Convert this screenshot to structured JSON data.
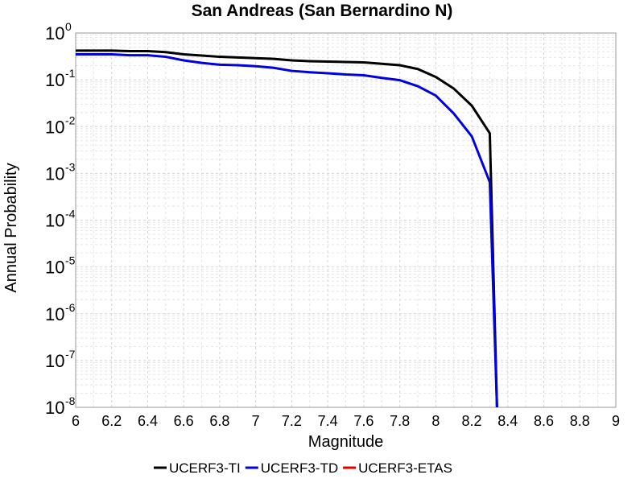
{
  "chart_data": {
    "type": "line",
    "title": "San Andreas (San Bernardino N)",
    "xlabel": "Magnitude",
    "ylabel": "Annual Probability",
    "xlim": [
      6,
      9
    ],
    "ylim": [
      1e-08,
      1
    ],
    "yscale": "log",
    "grid": true,
    "legend_position": "bottom",
    "xticks": [
      "6",
      "6.2",
      "6.4",
      "6.6",
      "6.8",
      "7",
      "7.2",
      "7.4",
      "7.6",
      "7.8",
      "8",
      "8.2",
      "8.4",
      "8.6",
      "8.8",
      "9"
    ],
    "yticks": [
      {
        "base": "10",
        "exp": "0",
        "value": 1
      },
      {
        "base": "10",
        "exp": "-1",
        "value": 0.1
      },
      {
        "base": "10",
        "exp": "-2",
        "value": 0.01
      },
      {
        "base": "10",
        "exp": "-3",
        "value": 0.001
      },
      {
        "base": "10",
        "exp": "-4",
        "value": 0.0001
      },
      {
        "base": "10",
        "exp": "-5",
        "value": 1e-05
      },
      {
        "base": "10",
        "exp": "-6",
        "value": 1e-06
      },
      {
        "base": "10",
        "exp": "-7",
        "value": 1e-07
      },
      {
        "base": "10",
        "exp": "-8",
        "value": 1e-08
      }
    ],
    "series": [
      {
        "name": "UCERF3-TI",
        "color": "#000000",
        "x": [
          6.0,
          6.1,
          6.2,
          6.3,
          6.4,
          6.5,
          6.6,
          6.7,
          6.8,
          6.9,
          7.0,
          7.1,
          7.2,
          7.3,
          7.4,
          7.5,
          7.6,
          7.7,
          7.8,
          7.9,
          8.0,
          8.1,
          8.2,
          8.3,
          8.34
        ],
        "y": [
          0.42,
          0.42,
          0.42,
          0.41,
          0.41,
          0.39,
          0.35,
          0.33,
          0.31,
          0.3,
          0.29,
          0.28,
          0.26,
          0.25,
          0.245,
          0.24,
          0.235,
          0.22,
          0.205,
          0.17,
          0.115,
          0.065,
          0.028,
          0.0072,
          1e-08
        ]
      },
      {
        "name": "UCERF3-TD",
        "color": "#0000e0",
        "x": [
          6.0,
          6.1,
          6.2,
          6.3,
          6.4,
          6.5,
          6.6,
          6.7,
          6.8,
          6.9,
          7.0,
          7.1,
          7.2,
          7.3,
          7.4,
          7.5,
          7.6,
          7.7,
          7.8,
          7.9,
          8.0,
          8.1,
          8.2,
          8.3,
          8.34
        ],
        "y": [
          0.35,
          0.35,
          0.35,
          0.335,
          0.335,
          0.31,
          0.26,
          0.23,
          0.21,
          0.205,
          0.195,
          0.18,
          0.155,
          0.145,
          0.138,
          0.13,
          0.125,
          0.11,
          0.098,
          0.073,
          0.046,
          0.019,
          0.0062,
          0.00065,
          1e-08
        ]
      },
      {
        "name": "UCERF3-ETAS",
        "color": "#e00000",
        "x": [],
        "y": []
      }
    ]
  }
}
